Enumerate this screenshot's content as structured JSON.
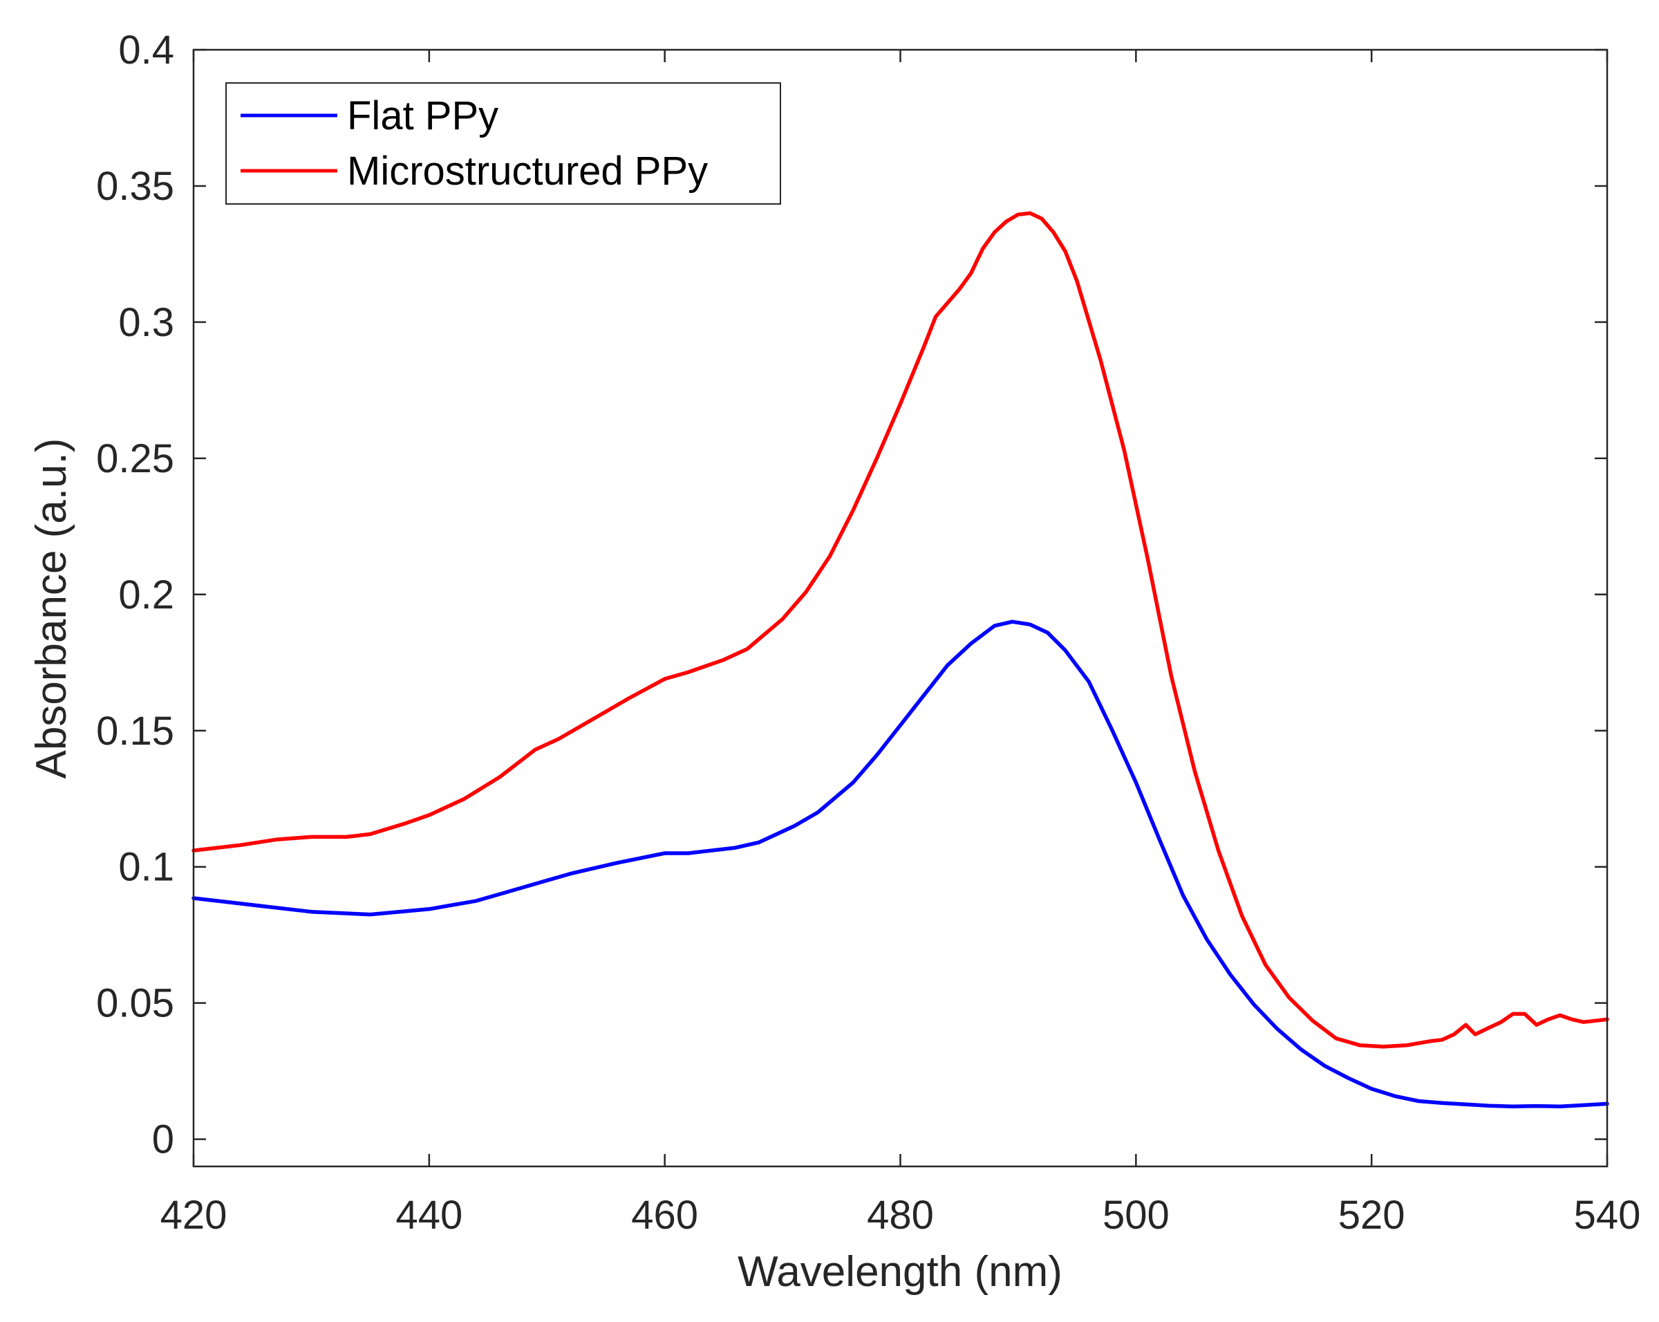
{
  "chart_data": {
    "type": "line",
    "title": "",
    "xlabel": "Wavelength (nm)",
    "ylabel": "Absorbance (a.u.)",
    "xlim": [
      420,
      540
    ],
    "ylim": [
      -0.01,
      0.4
    ],
    "xticks": [
      420,
      440,
      460,
      480,
      500,
      520,
      540
    ],
    "yticks": [
      0,
      0.05,
      0.1,
      0.15,
      0.2,
      0.25,
      0.3,
      0.35,
      0.4
    ],
    "ytick_labels": [
      "0",
      "0.05",
      "0.1",
      "0.15",
      "0.2",
      "0.25",
      "0.3",
      "0.35",
      "0.4"
    ],
    "grid": false,
    "legend_position": "top-left",
    "series": [
      {
        "name": "Flat PPy",
        "color": "#0000ff",
        "x": [
          420,
          423,
          427,
          430,
          435,
          440,
          444,
          446,
          450,
          452,
          456,
          460,
          462,
          466,
          468,
          471,
          473,
          476,
          478,
          480,
          482,
          484,
          486,
          488,
          489.5,
          491,
          492.5,
          494,
          496,
          498,
          500,
          502,
          504,
          506,
          508,
          510,
          512,
          514,
          516,
          518,
          520,
          522,
          524,
          526,
          528,
          530,
          532,
          534,
          536,
          538,
          540
        ],
        "y": [
          0.0885,
          0.087,
          0.085,
          0.0835,
          0.0825,
          0.0845,
          0.0875,
          0.09,
          0.095,
          0.0975,
          0.1015,
          0.105,
          0.105,
          0.107,
          0.109,
          0.115,
          0.12,
          0.131,
          0.141,
          0.152,
          0.163,
          0.174,
          0.182,
          0.1885,
          0.19,
          0.189,
          0.186,
          0.1795,
          0.168,
          0.15,
          0.131,
          0.11,
          0.0895,
          0.0735,
          0.0605,
          0.0495,
          0.0405,
          0.033,
          0.027,
          0.0225,
          0.0185,
          0.0158,
          0.014,
          0.0133,
          0.0128,
          0.0123,
          0.012,
          0.0122,
          0.012,
          0.0125,
          0.013
        ]
      },
      {
        "name": "Microstructured PPy",
        "color": "#ff0000",
        "x": [
          420,
          424,
          427,
          430,
          433,
          435,
          438,
          440,
          443,
          446,
          449,
          451,
          455,
          457,
          460,
          462,
          465,
          467,
          470,
          472,
          474,
          476,
          478,
          480,
          482,
          483,
          485,
          486,
          487,
          488,
          489,
          490,
          491,
          492,
          493,
          494,
          495,
          497,
          499,
          501,
          503,
          505,
          507,
          509,
          511,
          513,
          515,
          517,
          519,
          521,
          523,
          525,
          526,
          527,
          528,
          528.8,
          530,
          531,
          532,
          533,
          534,
          535,
          536,
          537,
          538,
          539,
          540
        ],
        "y": [
          0.106,
          0.108,
          0.11,
          0.111,
          0.111,
          0.112,
          0.116,
          0.119,
          0.125,
          0.133,
          0.143,
          0.147,
          0.157,
          0.162,
          0.169,
          0.1715,
          0.176,
          0.18,
          0.191,
          0.201,
          0.214,
          0.231,
          0.25,
          0.27,
          0.291,
          0.302,
          0.312,
          0.318,
          0.327,
          0.333,
          0.337,
          0.3395,
          0.34,
          0.338,
          0.333,
          0.326,
          0.315,
          0.286,
          0.253,
          0.213,
          0.17,
          0.135,
          0.106,
          0.082,
          0.064,
          0.052,
          0.0435,
          0.037,
          0.0345,
          0.034,
          0.0345,
          0.036,
          0.0365,
          0.0385,
          0.042,
          0.0385,
          0.041,
          0.043,
          0.046,
          0.046,
          0.042,
          0.044,
          0.0455,
          0.044,
          0.043,
          0.0435,
          0.044
        ]
      }
    ]
  }
}
